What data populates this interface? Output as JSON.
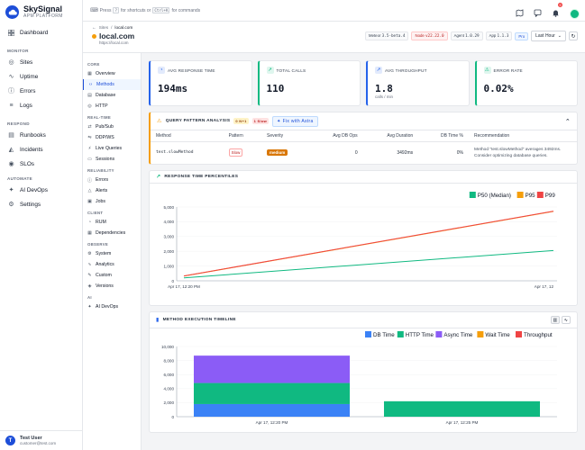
{
  "brand": {
    "name": "SkySignal",
    "sub": "APM PLATFORM"
  },
  "sidebar": {
    "dashboard": "Dashboard",
    "sections": [
      {
        "title": "MONITOR",
        "items": [
          {
            "label": "Sites",
            "icon": "globe-icon"
          },
          {
            "label": "Uptime",
            "icon": "activity-icon"
          },
          {
            "label": "Errors",
            "icon": "alert-icon"
          },
          {
            "label": "Logs",
            "icon": "file-icon"
          }
        ]
      },
      {
        "title": "RESPOND",
        "items": [
          {
            "label": "Runbooks",
            "icon": "book-icon"
          },
          {
            "label": "Incidents",
            "icon": "siren-icon"
          },
          {
            "label": "SLOs",
            "icon": "target-icon"
          }
        ]
      },
      {
        "title": "AUTOMATE",
        "items": [
          {
            "label": "AI DevOps",
            "icon": "sparkle-icon"
          },
          {
            "label": "Settings",
            "icon": "gear-icon"
          }
        ]
      }
    ],
    "user": {
      "initial": "T",
      "name": "Test User",
      "email": "customer@test.com"
    }
  },
  "topbar": {
    "press": "Press",
    "key1": "?",
    "for_shortcuts": "for shortcuts or",
    "key2": "Ctrl+K",
    "for_commands": "for commands",
    "notif_count": "9"
  },
  "site": {
    "crumb_sites": "Sites",
    "crumb_current": "local.com",
    "title": "local.com",
    "url": "https://local.com",
    "meteor": "Meteor",
    "meteor_v": "3.5-beta.4",
    "node": "Node",
    "node_v": "v22.22.0",
    "agent": "Agent",
    "agent_v": "1.0.29",
    "app": "App",
    "app_v": "1.1.3",
    "plan": "Pro",
    "range": "Last Hour"
  },
  "subnav": [
    {
      "title": "CORE",
      "items": [
        "Overview",
        "Methods",
        "Database",
        "HTTP"
      ]
    },
    {
      "title": "REAL-TIME",
      "items": [
        "Pub/Sub",
        "DDP/WS",
        "Live Queries",
        "Sessions"
      ]
    },
    {
      "title": "RELIABILITY",
      "items": [
        "Errors",
        "Alerts",
        "Jobs"
      ]
    },
    {
      "title": "CLIENT",
      "items": [
        "RUM",
        "Dependencies"
      ]
    },
    {
      "title": "OBSERVE",
      "items": [
        "System",
        "Analytics",
        "Custom",
        "Versions"
      ]
    },
    {
      "title": "AI",
      "items": [
        "AI DevOps"
      ]
    }
  ],
  "subnav_active": "Methods",
  "metrics": [
    {
      "label": "AVG RESPONSE TIME",
      "value": "194ms",
      "sub": "",
      "color": "#2563eb"
    },
    {
      "label": "TOTAL CALLS",
      "value": "110",
      "sub": "",
      "color": "#10b981"
    },
    {
      "label": "AVG THROUGHPUT",
      "value": "1.8",
      "sub": "calls / min",
      "color": "#2563eb"
    },
    {
      "label": "ERROR RATE",
      "value": "0.02%",
      "sub": "",
      "color": "#10b981"
    }
  ],
  "qpa": {
    "title": "QUERY PATTERN ANALYSIS",
    "n1": "0 N+1",
    "slow": "1 Slow",
    "astra": "Fix with Astra",
    "headers": [
      "Method",
      "Pattern",
      "Severity",
      "Avg DB Ops",
      "Avg Duration",
      "DB Time %",
      "Recommendation"
    ],
    "row": {
      "method": "test.slowMethod",
      "pattern": "Slow",
      "severity": "medium",
      "ops": "0",
      "dur": "3492ms",
      "pct": "0%",
      "rec": "Method \"test.slowMethod\" averages 3492ms. Consider optimizing database queries."
    }
  },
  "chart_data": [
    {
      "type": "line",
      "title": "RESPONSE TIME PERCENTILES",
      "x": [
        "Apr 17, 12:20 PM",
        "Apr 17, 12"
      ],
      "series": [
        {
          "name": "P50 (Median)",
          "color": "#10b981",
          "values": [
            200,
            2050
          ]
        },
        {
          "name": "P95",
          "color": "#f59e0b",
          "values": [
            320,
            4700
          ]
        },
        {
          "name": "P99",
          "color": "#ef4444",
          "values": [
            330,
            4720
          ]
        }
      ],
      "ylim": [
        0,
        5000
      ],
      "yticks": [
        "0",
        "1,000",
        "2,000",
        "3,000",
        "4,000",
        "5,000"
      ],
      "legend": "top-right"
    },
    {
      "type": "bar",
      "title": "METHOD EXECUTION TIMELINE",
      "stacked": true,
      "categories": [
        "Apr 17, 12:20 PM",
        "Apr 17, 12:25 PM"
      ],
      "series": [
        {
          "name": "DB Time",
          "color": "#3b82f6",
          "values": [
            1800,
            0
          ]
        },
        {
          "name": "HTTP Time",
          "color": "#10b981",
          "values": [
            3000,
            2200
          ]
        },
        {
          "name": "Async Time",
          "color": "#8b5cf6",
          "values": [
            3900,
            0
          ]
        },
        {
          "name": "Wait Time",
          "color": "#f59e0b",
          "values": [
            0,
            0
          ]
        },
        {
          "name": "Throughput",
          "color": "#ef4444",
          "values": [
            0,
            0
          ]
        }
      ],
      "ylim": [
        0,
        10000
      ],
      "yticks": [
        "0",
        "2,000",
        "4,000",
        "6,000",
        "8,000",
        "10,000"
      ],
      "legend": "top-right"
    }
  ]
}
